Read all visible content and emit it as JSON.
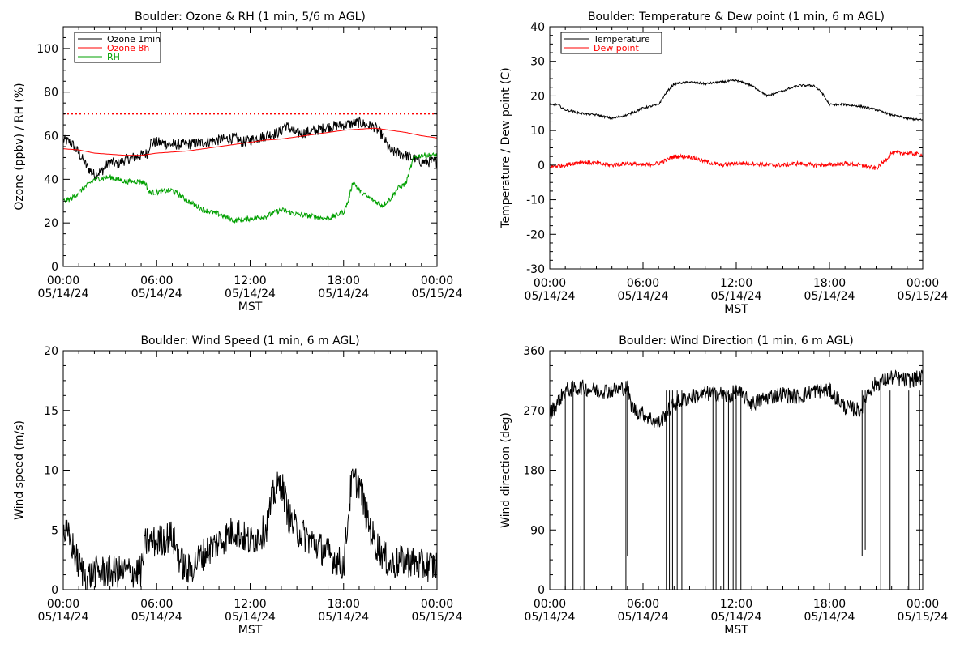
{
  "chart_data": [
    {
      "type": "line",
      "title": "Boulder: Ozone & RH (1 min, 5/6 m AGL)",
      "xlabel": "MST",
      "ylabel": "Ozone (ppbv) / RH (%)",
      "xlim": [
        "05/14/24 00:00",
        "05/15/24 00:00"
      ],
      "ylim": [
        0,
        110
      ],
      "x_tick_labels": [
        [
          "00:00",
          "05/14/24"
        ],
        [
          "06:00",
          "05/14/24"
        ],
        [
          "12:00",
          "05/14/24"
        ],
        [
          "18:00",
          "05/14/24"
        ],
        [
          "00:00",
          "05/15/24"
        ]
      ],
      "y_ticks": [
        0,
        20,
        40,
        60,
        80,
        100
      ],
      "grid": false,
      "legend": "top-left",
      "reference_line": {
        "y": 70,
        "style": "dotted",
        "color": "#ff0000"
      },
      "series": [
        {
          "name": "Ozone 1min",
          "color": "#000000",
          "noise": 2.5,
          "x": [
            0,
            0.5,
            1,
            1.5,
            2,
            2.5,
            3,
            3.5,
            4,
            4.5,
            5,
            5.4,
            5.6,
            6,
            7,
            8,
            9,
            10,
            11,
            11.5,
            12,
            13,
            14,
            14.2,
            15,
            16,
            17,
            18,
            19,
            19.5,
            20,
            20.5,
            21,
            22,
            23,
            24
          ],
          "y": [
            58,
            57,
            52,
            46,
            42,
            44,
            48,
            47,
            49,
            50,
            51,
            52,
            57,
            57,
            56,
            56,
            57,
            58,
            59,
            57,
            58,
            60,
            62,
            65,
            61,
            62,
            64,
            65,
            66,
            65,
            64,
            60,
            53,
            51,
            48,
            48
          ]
        },
        {
          "name": "Ozone 8h",
          "color": "#ff0000",
          "noise": 0,
          "x": [
            0,
            1,
            2,
            3,
            4,
            5,
            6,
            7,
            8,
            9,
            10,
            11,
            12,
            13,
            14,
            15,
            16,
            17,
            18,
            19,
            20,
            21,
            22,
            23,
            24
          ],
          "y": [
            54,
            53.5,
            52,
            51.5,
            51,
            51,
            52,
            52.5,
            53,
            54,
            55,
            56,
            57,
            58,
            58.5,
            59.5,
            60.5,
            61.5,
            62.5,
            63,
            63.5,
            62.5,
            61.5,
            60,
            59
          ]
        },
        {
          "name": "RH",
          "color": "#00a000",
          "noise": 1.2,
          "x": [
            0,
            0.5,
            1,
            1.5,
            2,
            3,
            4,
            5,
            5.3,
            5.5,
            6,
            7,
            8,
            9,
            10,
            11,
            12,
            13,
            14,
            15,
            16,
            17,
            18,
            18.3,
            18.6,
            19,
            19.5,
            20,
            20.5,
            21,
            21.5,
            22,
            22.3,
            22.5,
            23,
            24
          ],
          "y": [
            30,
            31,
            34,
            37,
            40,
            41,
            39,
            39,
            38,
            34,
            34,
            35,
            30,
            26,
            24,
            21,
            22,
            23,
            26,
            24,
            23,
            22,
            25,
            30,
            39,
            35,
            32,
            30,
            28,
            31,
            36,
            38,
            45,
            50,
            51,
            51
          ]
        }
      ]
    },
    {
      "type": "line",
      "title": "Boulder: Temperature & Dew point (1 min, 6 m AGL)",
      "xlabel": "MST",
      "ylabel": "Temperature / Dew point (C)",
      "xlim": [
        "05/14/24 00:00",
        "05/15/24 00:00"
      ],
      "ylim": [
        -30,
        40
      ],
      "x_tick_labels": [
        [
          "00:00",
          "05/14/24"
        ],
        [
          "06:00",
          "05/14/24"
        ],
        [
          "12:00",
          "05/14/24"
        ],
        [
          "18:00",
          "05/14/24"
        ],
        [
          "00:00",
          "05/15/24"
        ]
      ],
      "y_ticks": [
        -30,
        -20,
        -10,
        0,
        10,
        20,
        30,
        40
      ],
      "grid": false,
      "legend": "top-left",
      "series": [
        {
          "name": "Temperature",
          "color": "#000000",
          "noise": 0.3,
          "x": [
            0,
            0.5,
            1,
            2,
            3,
            4,
            5,
            6,
            7,
            7.5,
            8,
            9,
            10,
            11,
            12,
            13,
            14,
            15,
            16,
            17,
            17.5,
            18,
            19,
            20,
            21,
            22,
            23,
            24
          ],
          "y": [
            17.5,
            17.5,
            16,
            15,
            14.5,
            13.5,
            14.5,
            16.5,
            17.5,
            21,
            23.5,
            24,
            23.5,
            24,
            24.5,
            23,
            20,
            21.5,
            23,
            23,
            21,
            17.5,
            17.5,
            17,
            16,
            14.5,
            13.5,
            13
          ]
        },
        {
          "name": "Dew point",
          "color": "#ff0000",
          "noise": 0.6,
          "x": [
            0,
            1,
            2,
            3,
            4,
            5,
            6,
            7,
            8,
            9,
            10,
            11,
            12,
            13,
            14,
            15,
            16,
            17,
            18,
            19,
            20,
            21,
            21.5,
            22,
            23,
            24
          ],
          "y": [
            -0.5,
            0,
            1,
            0.5,
            0,
            0.5,
            0,
            0.5,
            2.5,
            2.5,
            1,
            0,
            0.5,
            0.5,
            0,
            0,
            0.5,
            0,
            0,
            0.5,
            0,
            -1,
            1,
            3.5,
            3.5,
            3
          ]
        }
      ]
    },
    {
      "type": "line",
      "title": "Boulder: Wind Speed (1 min, 6 m AGL)",
      "xlabel": "MST",
      "ylabel": "Wind speed (m/s)",
      "xlim": [
        "05/14/24 00:00",
        "05/15/24 00:00"
      ],
      "ylim": [
        0,
        20
      ],
      "x_tick_labels": [
        [
          "00:00",
          "05/14/24"
        ],
        [
          "06:00",
          "05/14/24"
        ],
        [
          "12:00",
          "05/14/24"
        ],
        [
          "18:00",
          "05/14/24"
        ],
        [
          "00:00",
          "05/15/24"
        ]
      ],
      "y_ticks": [
        0,
        5,
        10,
        15,
        20
      ],
      "grid": false,
      "legend": "none",
      "series": [
        {
          "name": "",
          "color": "#000000",
          "noise": 1.4,
          "x": [
            0,
            0.5,
            1,
            1.5,
            2,
            3,
            4,
            5,
            5.3,
            6,
            7,
            7.5,
            8,
            9,
            10,
            11,
            12,
            13,
            13.5,
            14,
            14.5,
            15,
            16,
            17,
            18,
            18.5,
            19,
            19.5,
            20,
            21,
            22,
            23,
            24
          ],
          "y": [
            5,
            4,
            2,
            1,
            1.5,
            1.5,
            1.5,
            1.5,
            4,
            4,
            4.5,
            2.5,
            1.5,
            3,
            4,
            5,
            4,
            5,
            8,
            9,
            6,
            5,
            4,
            3,
            2,
            9,
            9,
            6,
            4,
            2,
            2.5,
            2,
            2
          ]
        }
      ]
    },
    {
      "type": "line",
      "title": "Boulder: Wind Direction (1 min, 6 m AGL)",
      "xlabel": "MST",
      "ylabel": "Wind direction (deg)",
      "xlim": [
        "05/14/24 00:00",
        "05/15/24 00:00"
      ],
      "ylim": [
        0,
        360
      ],
      "x_tick_labels": [
        [
          "00:00",
          "05/14/24"
        ],
        [
          "06:00",
          "05/14/24"
        ],
        [
          "12:00",
          "05/14/24"
        ],
        [
          "18:00",
          "05/14/24"
        ],
        [
          "00:00",
          "05/15/24"
        ]
      ],
      "y_ticks": [
        0,
        90,
        180,
        270,
        360
      ],
      "grid": false,
      "legend": "none",
      "series": [
        {
          "name": "",
          "color": "#000000",
          "noise": 12,
          "x": [
            0,
            1,
            2,
            3,
            4,
            5,
            5.2,
            5.5,
            6,
            7,
            8,
            9,
            10,
            11,
            11.5,
            12,
            13,
            14,
            15,
            16,
            17,
            18,
            19,
            20,
            20.5,
            21,
            22,
            23,
            24
          ],
          "y": [
            265,
            300,
            305,
            300,
            300,
            305,
            280,
            270,
            265,
            250,
            280,
            290,
            295,
            295,
            290,
            300,
            280,
            290,
            295,
            290,
            300,
            300,
            275,
            270,
            300,
            310,
            320,
            315,
            320
          ]
        }
      ],
      "spikes": [
        [
          1.0,
          0
        ],
        [
          1.5,
          0
        ],
        [
          2.2,
          0
        ],
        [
          4.9,
          0
        ],
        [
          5.0,
          50
        ],
        [
          7.5,
          0
        ],
        [
          7.7,
          0
        ],
        [
          7.9,
          0
        ],
        [
          8.2,
          0
        ],
        [
          8.5,
          0
        ],
        [
          10.5,
          0
        ],
        [
          10.7,
          0
        ],
        [
          11.2,
          0
        ],
        [
          11.5,
          0
        ],
        [
          11.8,
          0
        ],
        [
          12.0,
          0
        ],
        [
          12.3,
          0
        ],
        [
          20.1,
          50
        ],
        [
          20.3,
          60
        ],
        [
          21.3,
          0
        ],
        [
          21.9,
          0
        ],
        [
          23.1,
          0
        ],
        [
          23.8,
          0
        ]
      ]
    }
  ]
}
